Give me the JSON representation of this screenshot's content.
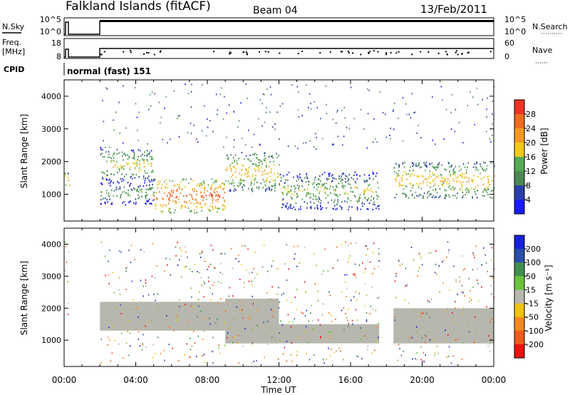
{
  "header": {
    "station": "Falkland Islands (fitACF)",
    "beam": "Beam 04",
    "date": "13/Feb/2011"
  },
  "param_panels": {
    "nsky": {
      "left_label": "N.Sky",
      "left_ticks": [
        "10^5",
        "10^0"
      ],
      "right_ticks": [
        "10^5",
        "10^0"
      ],
      "right_label": "N.Search"
    },
    "freq": {
      "left_label_lines": [
        "Freq.",
        "[MHz]"
      ],
      "left_ticks": [
        "18",
        "8"
      ],
      "right_ticks": [
        "60",
        "0"
      ],
      "right_label": "Nave"
    },
    "cpid": {
      "label": "CPID",
      "value": "normal (fast) 151"
    }
  },
  "colors": {
    "power_scale": [
      "#1a1aff",
      "#2c3fa8",
      "#4a8a52",
      "#55aa55",
      "#f2c81b",
      "#f39a21",
      "#f26a1c",
      "#ee3322"
    ],
    "velocity_scale": [
      "#ee1111",
      "#f25a1b",
      "#f48a1f",
      "#efc414",
      "#b8b8b0",
      "#6cc23a",
      "#3f8e4e",
      "#2a4fa8",
      "#1622d8"
    ],
    "ground_scatter": "#b7b7ae"
  },
  "chart_data": [
    {
      "type": "heatmap",
      "name": "power",
      "ylabel": "Slant Range [km]",
      "x_ticks": [
        "00:00",
        "04:00",
        "08:00",
        "12:00",
        "16:00",
        "20:00",
        "00:00"
      ],
      "xlim": [
        0,
        24
      ],
      "ylim": [
        180,
        4500
      ],
      "y_ticks": [
        1000,
        2000,
        3000,
        4000
      ],
      "colorbar": {
        "label": "Power [dB]",
        "ticks": [
          "28",
          "24",
          "20",
          "16",
          "12",
          "8",
          "4"
        ],
        "range": [
          0,
          30
        ]
      },
      "echo_regions": [
        {
          "t": [
            0.0,
            0.3
          ],
          "r": [
            1200,
            1700
          ],
          "p": 22
        },
        {
          "t": [
            2.0,
            5.0
          ],
          "r": [
            1400,
            2400
          ],
          "p": 18
        },
        {
          "t": [
            2.0,
            5.0
          ],
          "r": [
            700,
            1400
          ],
          "p": 14
        },
        {
          "t": [
            5.0,
            9.0
          ],
          "r": [
            450,
            1500
          ],
          "p": 26
        },
        {
          "t": [
            9.0,
            12.0
          ],
          "r": [
            1100,
            2300
          ],
          "p": 20
        },
        {
          "t": [
            12.0,
            17.6
          ],
          "r": [
            550,
            1700
          ],
          "p": 16
        },
        {
          "t": [
            18.4,
            24.0
          ],
          "r": [
            900,
            2000
          ],
          "p": 20
        }
      ]
    },
    {
      "type": "heatmap",
      "name": "velocity",
      "ylabel": "Slant Range [km]",
      "xlabel": "Time UT",
      "x_ticks": [
        "00:00",
        "04:00",
        "08:00",
        "12:00",
        "16:00",
        "20:00",
        "00:00"
      ],
      "xlim": [
        0,
        24
      ],
      "ylim": [
        180,
        4500
      ],
      "y_ticks": [
        1000,
        2000,
        3000,
        4000
      ],
      "colorbar": {
        "label": "Velocity [m s⁻¹]",
        "ticks": [
          "200",
          "100",
          "50",
          "15",
          "-15",
          "-50",
          "-100",
          "-200"
        ],
        "range": [
          -250,
          250
        ]
      },
      "ground_scatter_regions": [
        {
          "t": [
            2.0,
            9.0
          ],
          "r": [
            1300,
            2200
          ]
        },
        {
          "t": [
            9.0,
            12.0
          ],
          "r": [
            900,
            2300
          ]
        },
        {
          "t": [
            12.0,
            17.6
          ],
          "r": [
            900,
            1500
          ]
        },
        {
          "t": [
            18.4,
            24.0
          ],
          "r": [
            900,
            2000
          ]
        }
      ]
    }
  ]
}
